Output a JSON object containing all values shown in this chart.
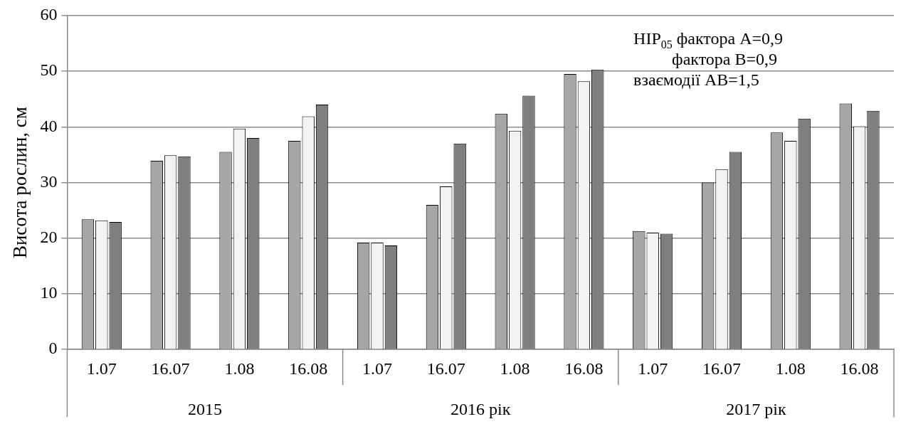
{
  "chart_data": {
    "type": "bar",
    "ylabel": "Висота рослин, см",
    "categories": [
      "1.07",
      "16.07",
      "1.08",
      "16.08",
      "1.07",
      "16.07",
      "1.08",
      "16.08",
      "1.07",
      "16.07",
      "1.08",
      "16.08"
    ],
    "series": [
      {
        "color": "#a6a6a6",
        "values": [
          23.4,
          33.9,
          35.5,
          37.5,
          19.2,
          26.0,
          42.4,
          49.5,
          21.3,
          30.0,
          39.0,
          44.2
        ]
      },
      {
        "color": "#f2f2f2",
        "values": [
          23.2,
          34.9,
          39.7,
          41.9,
          19.2,
          29.3,
          39.3,
          48.2,
          21.0,
          32.4,
          37.5,
          40.1
        ]
      },
      {
        "color": "#7f7f7f",
        "values": [
          22.9,
          34.7,
          38.0,
          44.0,
          18.7,
          37.0,
          45.6,
          50.3,
          20.8,
          35.5,
          41.5,
          42.9
        ]
      }
    ],
    "ylim": [
      0,
      60
    ],
    "yticks": [
      0,
      10,
      20,
      30,
      40,
      50,
      60
    ],
    "grid": "y",
    "legend": false,
    "annotations": [
      "НІР$_{05}$ фактора А=0,9\n         фактора В=0,9\nвзаємодії АВ=1,5",
      "2015",
      "2016 рік",
      "2017 рік"
    ]
  }
}
